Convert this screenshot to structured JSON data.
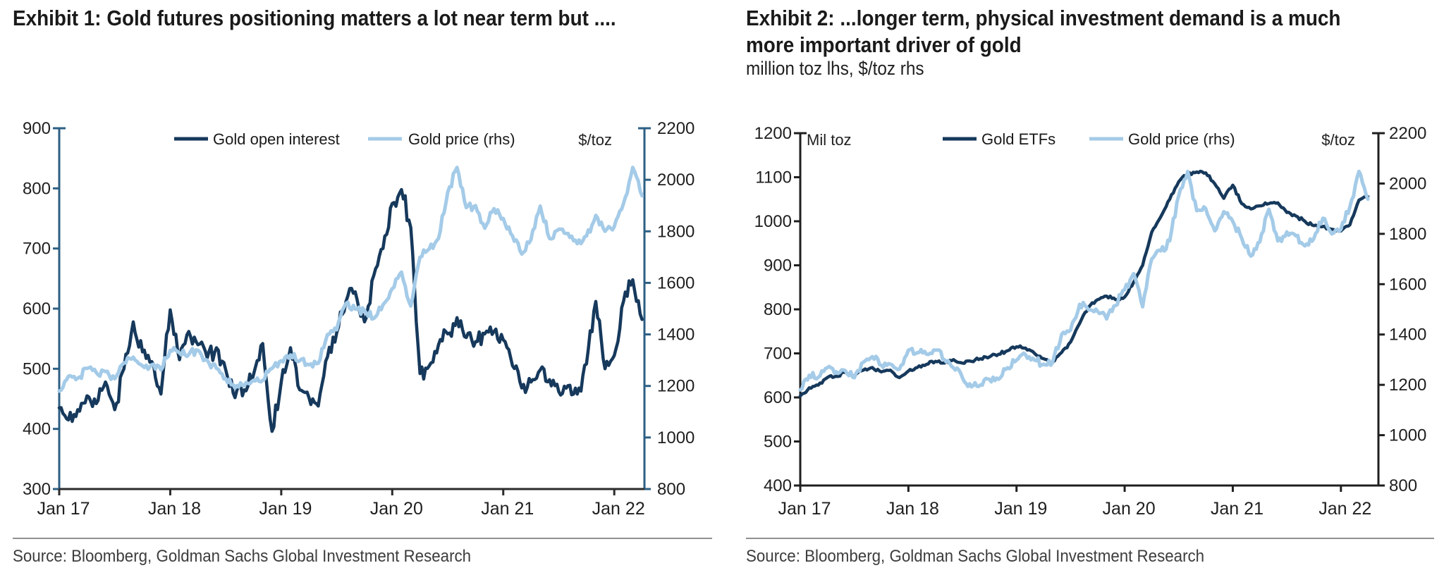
{
  "panels": [
    {
      "title_lines": [
        "Exhibit 1: Gold futures positioning matters a lot near term but ...."
      ],
      "subtitle": "",
      "source": "Source: Bloomberg, Goldman Sachs Global Investment Research"
    },
    {
      "title_lines": [
        "Exhibit 2: ...longer term, physical investment demand is a much",
        "more important driver of gold"
      ],
      "subtitle": "million toz lhs, $/toz rhs",
      "source": "Source: Bloomberg, Goldman Sachs Global Investment Research"
    }
  ],
  "colors": {
    "dark_navy_series": "#16395c",
    "light_blue_series": "#a4cbe8",
    "chart1_value_axis": "#2d5f83",
    "black_axis": "#1f1f1f",
    "text": "#1f1f1f"
  },
  "chart_data": [
    {
      "type": "line",
      "title": "Exhibit 1: Gold futures positioning matters a lot near term but ....",
      "x_axis": {
        "tick_labels": [
          "Jan 17",
          "Jan 18",
          "Jan 19",
          "Jan 20",
          "Jan 21",
          "Jan 22"
        ],
        "tick_month_indices": [
          0,
          12,
          24,
          36,
          48,
          60
        ],
        "span": "monthly points, Jan 2017 - Apr 2022",
        "n_points": 64
      },
      "left_axis": {
        "label": "",
        "min": 300,
        "max": 900,
        "ticks": [
          300,
          400,
          500,
          600,
          700,
          800,
          900
        ]
      },
      "right_axis": {
        "label": "$/toz",
        "min": 800,
        "max": 2200,
        "ticks": [
          800,
          1000,
          1200,
          1400,
          1600,
          1800,
          2000,
          2200
        ]
      },
      "legend_position": "top-center",
      "grid": false,
      "series": [
        {
          "name": "Gold open interest",
          "axis": "left",
          "color": "#16395c",
          "values": [
            435,
            415,
            432,
            455,
            442,
            478,
            432,
            500,
            578,
            528,
            512,
            458,
            598,
            515,
            562,
            540,
            518,
            535,
            498,
            452,
            465,
            490,
            542,
            396,
            478,
            535,
            465,
            452,
            438,
            520,
            560,
            612,
            628,
            578,
            655,
            700,
            775,
            798,
            735,
            492,
            505,
            540,
            558,
            585,
            552,
            545,
            558,
            562,
            548,
            505,
            468,
            478,
            498,
            482,
            462,
            472,
            458,
            508,
            612,
            500,
            522,
            612,
            648,
            582
          ]
        },
        {
          "name": "Gold price (rhs)",
          "axis": "right",
          "color": "#a4cbe8",
          "values": [
            1180,
            1238,
            1230,
            1268,
            1252,
            1256,
            1228,
            1290,
            1312,
            1278,
            1282,
            1262,
            1338,
            1328,
            1322,
            1338,
            1300,
            1268,
            1228,
            1192,
            1200,
            1222,
            1222,
            1268,
            1298,
            1320,
            1298,
            1282,
            1288,
            1400,
            1418,
            1520,
            1498,
            1492,
            1462,
            1515,
            1578,
            1642,
            1510,
            1700,
            1732,
            1772,
            1952,
            2048,
            1892,
            1900,
            1812,
            1888,
            1850,
            1782,
            1712,
            1768,
            1898,
            1772,
            1808,
            1792,
            1752,
            1782,
            1862,
            1800,
            1818,
            1908,
            2048,
            1938
          ]
        }
      ]
    },
    {
      "type": "line",
      "title": "Exhibit 2: ...longer term, physical investment demand is a much more important driver of gold",
      "subtitle": "million toz lhs, $/toz rhs",
      "x_axis": {
        "tick_labels": [
          "Jan 17",
          "Jan 18",
          "Jan 19",
          "Jan 20",
          "Jan 21",
          "Jan 22"
        ],
        "tick_month_indices": [
          0,
          12,
          24,
          36,
          48,
          60
        ],
        "span": "monthly points, Jan 2017 - Apr 2022",
        "n_points": 64
      },
      "left_axis": {
        "label": "Mil toz",
        "min": 400,
        "max": 1200,
        "ticks": [
          400,
          500,
          600,
          700,
          800,
          900,
          1000,
          1100,
          1200
        ]
      },
      "right_axis": {
        "label": "$/toz",
        "min": 800,
        "max": 2200,
        "ticks": [
          800,
          1000,
          1200,
          1400,
          1600,
          1800,
          2000,
          2200
        ]
      },
      "legend_position": "top-center",
      "grid": false,
      "series": [
        {
          "name": "Gold ETFs",
          "axis": "left",
          "color": "#16395c",
          "values": [
            603,
            622,
            628,
            645,
            648,
            657,
            648,
            662,
            668,
            658,
            662,
            645,
            660,
            668,
            675,
            682,
            678,
            686,
            678,
            682,
            688,
            692,
            698,
            706,
            715,
            712,
            700,
            688,
            680,
            702,
            726,
            768,
            805,
            822,
            830,
            822,
            828,
            862,
            900,
            975,
            1010,
            1050,
            1090,
            1108,
            1112,
            1110,
            1085,
            1052,
            1082,
            1040,
            1028,
            1035,
            1040,
            1042,
            1020,
            1012,
            1000,
            990,
            988,
            982,
            978,
            992,
            1048,
            1056
          ]
        },
        {
          "name": "Gold price (rhs)",
          "axis": "right",
          "color": "#a4cbe8",
          "values": [
            1180,
            1238,
            1230,
            1268,
            1252,
            1256,
            1228,
            1290,
            1312,
            1278,
            1282,
            1262,
            1338,
            1328,
            1322,
            1338,
            1300,
            1268,
            1228,
            1192,
            1200,
            1222,
            1222,
            1268,
            1298,
            1320,
            1298,
            1282,
            1288,
            1400,
            1418,
            1520,
            1498,
            1492,
            1462,
            1515,
            1578,
            1642,
            1510,
            1700,
            1732,
            1772,
            1952,
            2048,
            1892,
            1900,
            1812,
            1888,
            1850,
            1782,
            1712,
            1768,
            1898,
            1772,
            1808,
            1792,
            1752,
            1782,
            1862,
            1800,
            1818,
            1908,
            2048,
            1938
          ]
        }
      ]
    }
  ]
}
